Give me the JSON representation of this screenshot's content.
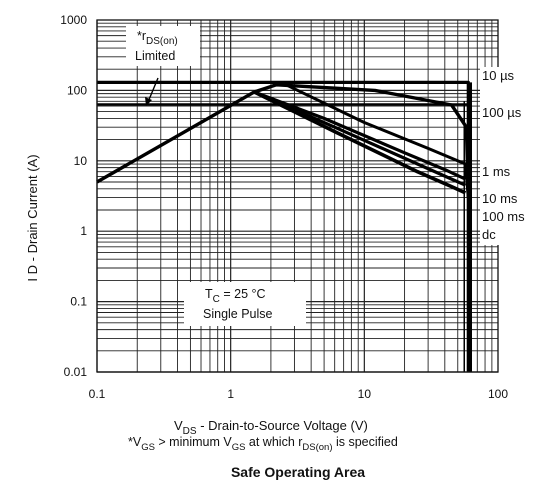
{
  "chart_data": {
    "type": "line",
    "caption": "Safe Operating Area",
    "xlabel": {
      "main": "V",
      "sub": "DS",
      "rest": " -   Drain-to-Source Voltage (V)"
    },
    "ylabel": "I D -  Drain Current (A)",
    "footnote": {
      "p1": "*V",
      "s1": "GS",
      "p2": " >  minimum V",
      "s2": "GS",
      "p3": " at which r",
      "s3": "DS(on)",
      "p4": " is specified"
    },
    "x_scale": "log",
    "y_scale": "log",
    "xlim": [
      0.1,
      100
    ],
    "ylim": [
      0.01,
      1000
    ],
    "x_ticks": [
      {
        "value": 0.1,
        "label": "0.1"
      },
      {
        "value": 1,
        "label": "1"
      },
      {
        "value": 10,
        "label": "10"
      },
      {
        "value": 100,
        "label": "100"
      }
    ],
    "y_ticks": [
      {
        "value": 1000,
        "label": "1000"
      },
      {
        "value": 100,
        "label": "100"
      },
      {
        "value": 10,
        "label": "10"
      },
      {
        "value": 1,
        "label": "1"
      },
      {
        "value": 0.1,
        "label": "0.1"
      },
      {
        "value": 0.01,
        "label": "0.01"
      }
    ],
    "grid": true,
    "annotations": {
      "rds_limited": {
        "star": "*r",
        "sub": "DS(on)",
        "line2": "Limited"
      },
      "conditions": {
        "t": "T",
        "tsub": "C",
        "rest": " = 25 °C",
        "line2": "Single Pulse"
      }
    },
    "series": [
      {
        "name": "10 µs",
        "points": [
          [
            0.1,
            130
          ],
          [
            60,
            130
          ],
          [
            60,
            0.01
          ]
        ]
      },
      {
        "name": "100 µs",
        "points": [
          [
            0.1,
            5
          ],
          [
            1.5,
            95
          ],
          [
            2.2,
            120
          ],
          [
            12,
            100
          ],
          [
            45,
            62
          ],
          [
            58,
            30
          ],
          [
            60,
            3
          ]
        ]
      },
      {
        "name": "1 ms",
        "points": [
          [
            2.6,
            120
          ],
          [
            10,
            35
          ],
          [
            30,
            15
          ],
          [
            57,
            9
          ],
          [
            60,
            3
          ]
        ]
      },
      {
        "name": "10 ms",
        "points": [
          [
            1.5,
            95
          ],
          [
            5,
            40
          ],
          [
            20,
            13
          ],
          [
            40,
            7.5
          ],
          [
            57,
            5.5
          ]
        ]
      },
      {
        "name": "100 ms",
        "points": [
          [
            1.5,
            95
          ],
          [
            6,
            30
          ],
          [
            25,
            9
          ],
          [
            45,
            5.5
          ],
          [
            57,
            4.5
          ]
        ]
      },
      {
        "name": "dc",
        "points": [
          [
            1.5,
            95
          ],
          [
            6,
            26
          ],
          [
            25,
            7
          ],
          [
            45,
            4.3
          ],
          [
            57,
            3.5
          ]
        ]
      }
    ],
    "limit_line": {
      "points": [
        [
          0.1,
          63
        ],
        [
          62,
          63
        ]
      ]
    },
    "vertical_limit": {
      "x": 62,
      "ylim": [
        0.01,
        130
      ]
    }
  }
}
